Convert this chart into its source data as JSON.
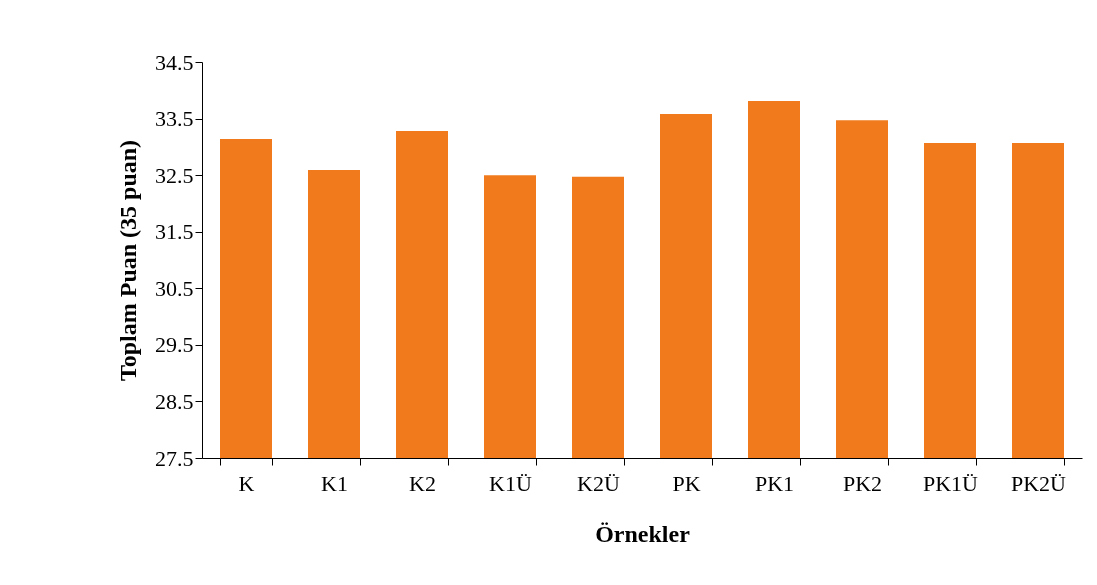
{
  "chart_data": {
    "type": "bar",
    "xlabel": "Örnekler",
    "ylabel": "Toplam Puan (35 puan)",
    "categories": [
      "K",
      "K1",
      "K2",
      "K1Ü",
      "K2Ü",
      "PK",
      "PK1",
      "PK2",
      "PK1Ü",
      "PK2Ü"
    ],
    "values": [
      33.14,
      32.59,
      33.28,
      32.5,
      32.47,
      33.58,
      33.81,
      33.47,
      33.07,
      33.07
    ],
    "color": "#f07a1c",
    "ylim": [
      27.5,
      34.5
    ],
    "yticks": [
      27.5,
      28.5,
      29.5,
      30.5,
      31.5,
      32.5,
      33.5,
      34.5
    ],
    "grid": false
  }
}
